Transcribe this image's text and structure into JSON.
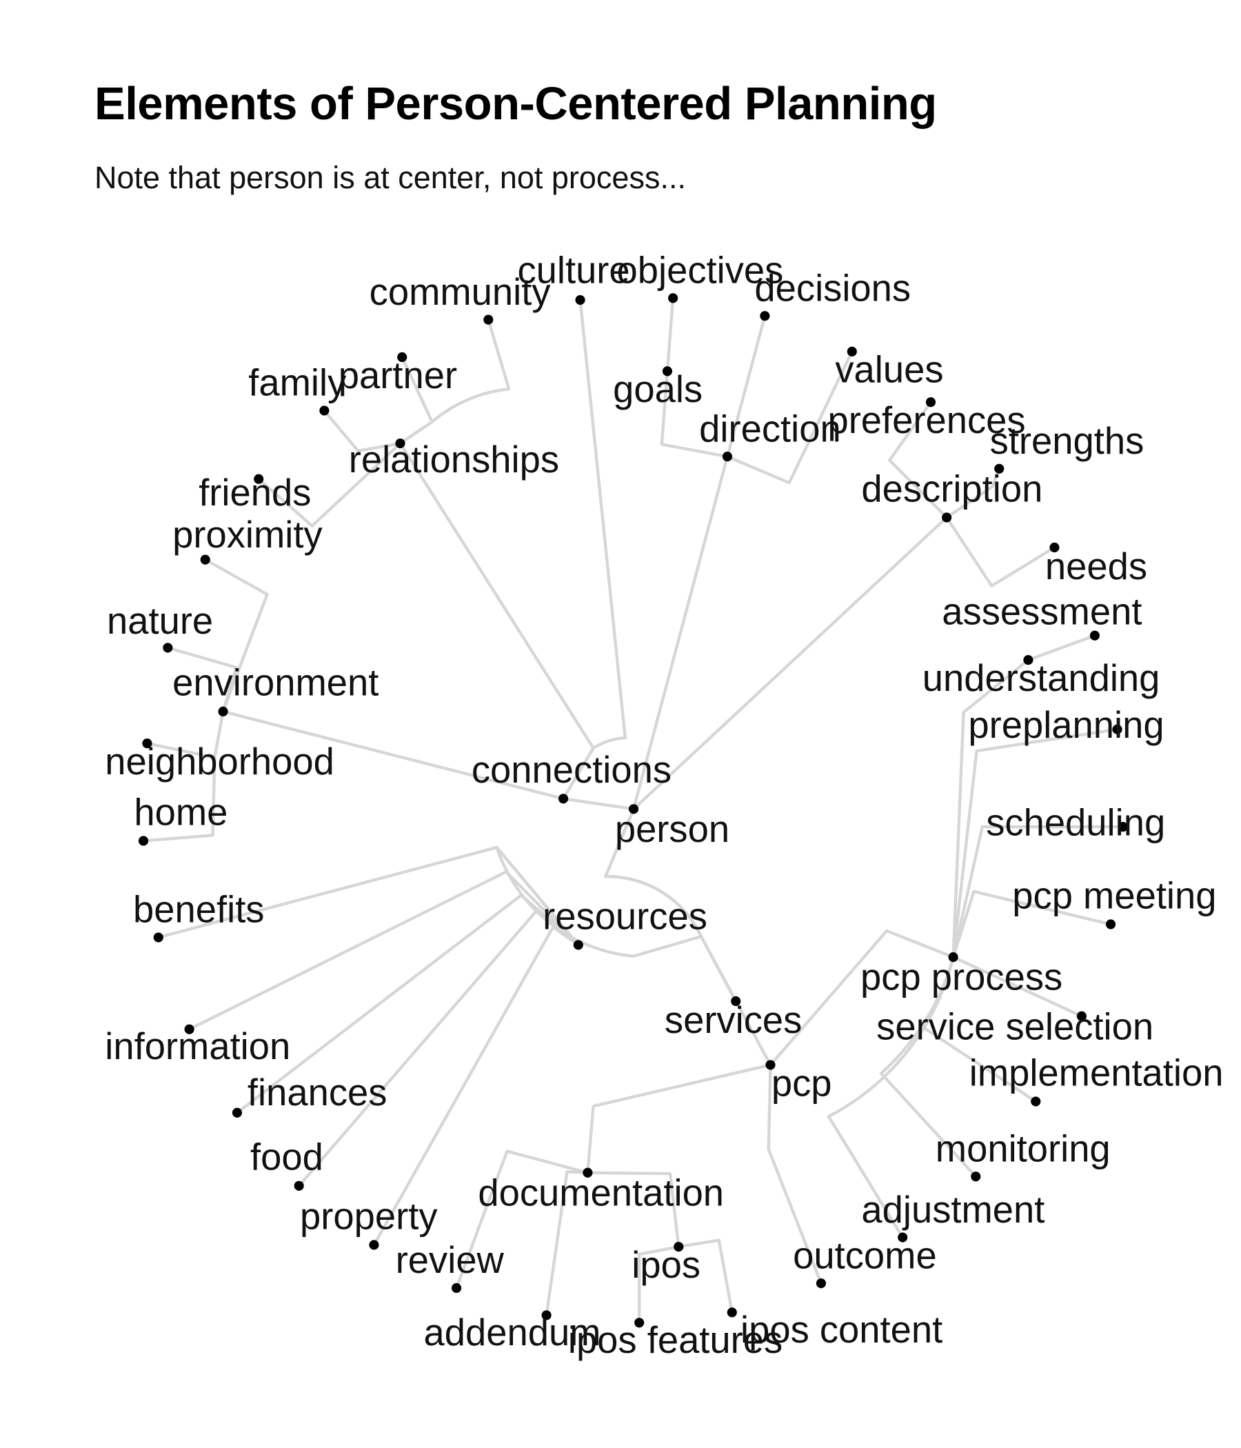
{
  "title": "Elements of Person-Centered Planning",
  "subtitle": "Note that person is at center, not process...",
  "diagram": {
    "type": "radial-dendrogram",
    "root": "person",
    "nodes": [
      {
        "id": "person",
        "label": "person",
        "parent": null
      },
      {
        "id": "connections",
        "label": "connections",
        "parent": "person"
      },
      {
        "id": "resources",
        "label": "resources",
        "parent": "person"
      },
      {
        "id": "description",
        "label": "description",
        "parent": "person"
      },
      {
        "id": "direction",
        "label": "direction",
        "parent": "person"
      },
      {
        "id": "pcp",
        "label": "pcp",
        "parent": "person"
      },
      {
        "id": "culture",
        "label": "culture",
        "parent": "connections"
      },
      {
        "id": "relationships",
        "label": "relationships",
        "parent": "connections"
      },
      {
        "id": "environment",
        "label": "environment",
        "parent": "connections"
      },
      {
        "id": "community",
        "label": "community",
        "parent": "relationships"
      },
      {
        "id": "partner",
        "label": "partner",
        "parent": "relationships"
      },
      {
        "id": "family",
        "label": "family",
        "parent": "relationships"
      },
      {
        "id": "friends",
        "label": "friends",
        "parent": "relationships"
      },
      {
        "id": "proximity",
        "label": "proximity",
        "parent": "environment"
      },
      {
        "id": "nature",
        "label": "nature",
        "parent": "environment"
      },
      {
        "id": "neighborhood",
        "label": "neighborhood",
        "parent": "environment"
      },
      {
        "id": "home",
        "label": "home",
        "parent": "environment"
      },
      {
        "id": "objectives",
        "label": "objectives",
        "parent": "direction"
      },
      {
        "id": "goals",
        "label": "goals",
        "parent": "direction"
      },
      {
        "id": "decisions",
        "label": "decisions",
        "parent": "direction"
      },
      {
        "id": "values",
        "label": "values",
        "parent": "direction"
      },
      {
        "id": "preferences",
        "label": "preferences",
        "parent": "description"
      },
      {
        "id": "strengths",
        "label": "strengths",
        "parent": "description"
      },
      {
        "id": "needs",
        "label": "needs",
        "parent": "description"
      },
      {
        "id": "benefits",
        "label": "benefits",
        "parent": "resources"
      },
      {
        "id": "information",
        "label": "information",
        "parent": "resources"
      },
      {
        "id": "finances",
        "label": "finances",
        "parent": "resources"
      },
      {
        "id": "food",
        "label": "food",
        "parent": "resources"
      },
      {
        "id": "property",
        "label": "property",
        "parent": "resources"
      },
      {
        "id": "services",
        "label": "services",
        "parent": "resources"
      },
      {
        "id": "pcp_process",
        "label": "pcp process",
        "parent": "pcp"
      },
      {
        "id": "documentation",
        "label": "documentation",
        "parent": "pcp"
      },
      {
        "id": "outcome",
        "label": "outcome",
        "parent": "pcp"
      },
      {
        "id": "understanding",
        "label": "understanding",
        "parent": "pcp_process"
      },
      {
        "id": "assessment",
        "label": "assessment",
        "parent": "understanding"
      },
      {
        "id": "preplanning",
        "label": "preplanning",
        "parent": "pcp_process"
      },
      {
        "id": "scheduling",
        "label": "scheduling",
        "parent": "pcp_process"
      },
      {
        "id": "pcp_meeting",
        "label": "pcp meeting",
        "parent": "pcp_process"
      },
      {
        "id": "service_selection",
        "label": "service selection",
        "parent": "pcp_process"
      },
      {
        "id": "implementation",
        "label": "implementation",
        "parent": "pcp_process"
      },
      {
        "id": "monitoring",
        "label": "monitoring",
        "parent": "pcp_process"
      },
      {
        "id": "adjustment",
        "label": "adjustment",
        "parent": "pcp_process"
      },
      {
        "id": "review",
        "label": "review",
        "parent": "documentation"
      },
      {
        "id": "addendum",
        "label": "addendum",
        "parent": "documentation"
      },
      {
        "id": "ipos",
        "label": "ipos",
        "parent": "documentation"
      },
      {
        "id": "ipos_features",
        "label": "ipos features",
        "parent": "ipos"
      },
      {
        "id": "ipos_content",
        "label": "ipos content",
        "parent": "ipos"
      }
    ]
  }
}
